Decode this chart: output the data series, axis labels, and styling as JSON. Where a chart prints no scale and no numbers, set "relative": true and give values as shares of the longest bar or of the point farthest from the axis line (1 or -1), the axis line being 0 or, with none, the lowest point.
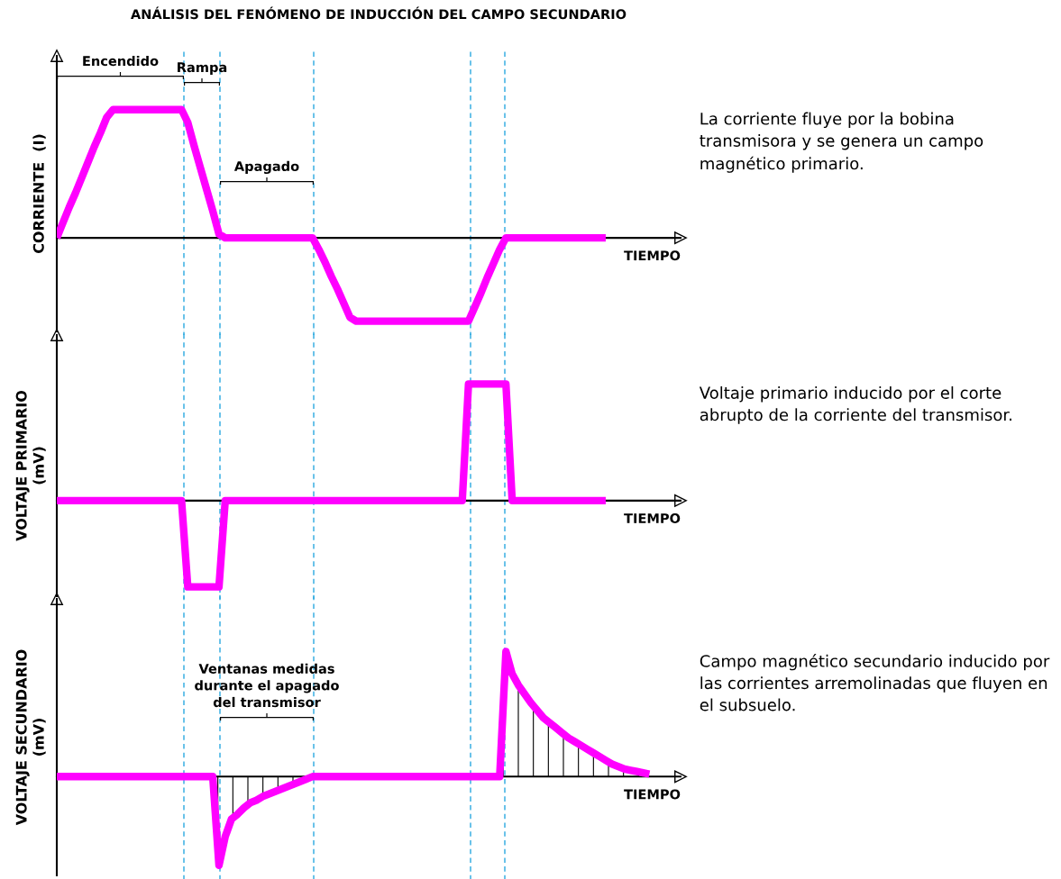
{
  "chart_data": [
    {
      "type": "line",
      "title": "ANÁLISIS DEL FENÓMENO DE INDUCCIÓN DEL CAMPO SECUNDARIO",
      "ylabel": "CORRIENTE  (I)",
      "xlabel": "TIEMPO",
      "relative": true,
      "line_style": "solid",
      "categories": [
        null,
        null,
        null,
        null,
        null,
        null,
        null,
        null,
        null,
        null,
        null,
        null,
        null,
        null,
        null,
        null,
        null,
        null,
        null,
        null,
        null,
        null,
        null,
        null,
        null,
        null,
        null,
        null,
        null,
        null,
        null,
        null,
        null,
        null,
        null,
        null,
        null,
        null,
        null,
        null,
        null,
        null,
        null,
        null,
        null,
        null,
        null,
        null,
        null,
        null,
        null,
        null,
        null,
        null,
        null,
        null,
        null,
        null,
        null,
        null,
        null,
        null,
        null,
        null,
        null,
        null,
        null,
        null,
        null,
        null,
        null,
        null,
        null,
        null,
        null,
        null,
        null,
        null,
        null,
        null,
        null,
        null,
        null,
        null,
        null,
        null,
        null,
        null,
        null
      ],
      "series": [
        {
          "color": "#ff00ff",
          "values": [
            0,
            0.12,
            0.24,
            0.35,
            0.47,
            0.59,
            0.71,
            0.82,
            0.94,
            1,
            1,
            1,
            1,
            1,
            1,
            1,
            1,
            1,
            1,
            1,
            1,
            0.9,
            0.72,
            0.55,
            0.38,
            0.21,
            0.03,
            0,
            0,
            0,
            0,
            0,
            0,
            0,
            0,
            0,
            0,
            0,
            0,
            0,
            0,
            0,
            -0.09,
            -0.19,
            -0.3,
            -0.4,
            -0.51,
            -0.62,
            -0.65,
            -0.65,
            -0.65,
            -0.65,
            -0.65,
            -0.65,
            -0.65,
            -0.65,
            -0.65,
            -0.65,
            -0.65,
            -0.65,
            -0.65,
            -0.65,
            -0.65,
            -0.65,
            -0.65,
            -0.65,
            -0.65,
            -0.54,
            -0.43,
            -0.31,
            -0.2,
            -0.09,
            0,
            0,
            0,
            0,
            0,
            0,
            0,
            0,
            0,
            0,
            0,
            0,
            0,
            0,
            0,
            0,
            0
          ]
        }
      ],
      "annotations": [
        "Encendido",
        "Rampa",
        "Apagado",
        "La corriente fluye por la bobina\ntransmisora y se genera un campo\nmagnético primario."
      ]
    },
    {
      "type": "line",
      "ylabel": "VOLTAJE PRIMARIO\n(mV)",
      "xlabel": "TIEMPO",
      "relative": true,
      "line_style": "solid",
      "categories": [
        null,
        null,
        null,
        null,
        null,
        null,
        null,
        null,
        null,
        null,
        null,
        null,
        null,
        null,
        null,
        null,
        null,
        null,
        null,
        null,
        null,
        null,
        null,
        null,
        null,
        null,
        null,
        null,
        null,
        null,
        null,
        null,
        null,
        null,
        null,
        null,
        null,
        null,
        null,
        null,
        null,
        null,
        null,
        null,
        null,
        null,
        null,
        null,
        null,
        null,
        null,
        null,
        null,
        null,
        null,
        null,
        null,
        null,
        null,
        null,
        null,
        null,
        null,
        null,
        null,
        null,
        null,
        null,
        null,
        null,
        null,
        null,
        null,
        null,
        null,
        null,
        null,
        null,
        null,
        null,
        null,
        null,
        null,
        null,
        null,
        null,
        null,
        null,
        null
      ],
      "series": [
        {
          "color": "#ff00ff",
          "values": [
            0,
            0,
            0,
            0,
            0,
            0,
            0,
            0,
            0,
            0,
            0,
            0,
            0,
            0,
            0,
            0,
            0,
            0,
            0,
            0,
            0,
            -0.74,
            -0.74,
            -0.74,
            -0.74,
            -0.74,
            -0.74,
            0,
            0,
            0,
            0,
            0,
            0,
            0,
            0,
            0,
            0,
            0,
            0,
            0,
            0,
            0,
            0,
            0,
            0,
            0,
            0,
            0,
            0,
            0,
            0,
            0,
            0,
            0,
            0,
            0,
            0,
            0,
            0,
            0,
            0,
            0,
            0,
            0,
            0,
            0,
            1,
            1,
            1,
            1,
            1,
            1,
            1,
            0,
            0,
            0,
            0,
            0,
            0,
            0,
            0,
            0,
            0,
            0,
            0,
            0,
            0,
            0,
            0
          ]
        }
      ],
      "annotations": [
        "Voltaje primario inducido por el corte\nabrupto de la corriente del transmisor."
      ]
    },
    {
      "type": "area",
      "ylabel": "VOLTAJE SECUNDARIO\n(mV)",
      "xlabel": "TIEMPO",
      "relative": true,
      "line_style": "solid",
      "categories": [
        null,
        null,
        null,
        null,
        null,
        null,
        null,
        null,
        null,
        null,
        null,
        null,
        null,
        null,
        null,
        null,
        null,
        null,
        null,
        null,
        null,
        null,
        null,
        null,
        null,
        null,
        null,
        null,
        null,
        null,
        null,
        null,
        null,
        null,
        null,
        null,
        null,
        null,
        null,
        null,
        null,
        null,
        null,
        null,
        null,
        null,
        null,
        null,
        null,
        null,
        null,
        null,
        null,
        null,
        null,
        null,
        null,
        null,
        null,
        null,
        null,
        null,
        null,
        null,
        null,
        null,
        null,
        null,
        null,
        null,
        null,
        null,
        null,
        null,
        null,
        null,
        null,
        null,
        null,
        null,
        null,
        null,
        null,
        null,
        null,
        null,
        null,
        null,
        null,
        null,
        null,
        null,
        null,
        null,
        null,
        null
      ],
      "series": [
        {
          "color": "#ff00ff",
          "values": [
            0,
            0,
            0,
            0,
            0,
            0,
            0,
            0,
            0,
            0,
            0,
            0,
            0,
            0,
            0,
            0,
            0,
            0,
            0,
            0,
            0,
            0,
            0,
            0,
            0,
            0,
            -0.71,
            -0.48,
            -0.34,
            -0.3,
            -0.25,
            -0.21,
            -0.19,
            -0.16,
            -0.14,
            -0.12,
            -0.1,
            -0.08,
            -0.06,
            -0.04,
            -0.02,
            0,
            0,
            0,
            0,
            0,
            0,
            0,
            0,
            0,
            0,
            0,
            0,
            0,
            0,
            0,
            0,
            0,
            0,
            0,
            0,
            0,
            0,
            0,
            0,
            0,
            0,
            0,
            0,
            0,
            0,
            0,
            1,
            0.82,
            0.73,
            0.66,
            0.59,
            0.53,
            0.47,
            0.43,
            0.39,
            0.35,
            0.31,
            0.28,
            0.25,
            0.22,
            0.19,
            0.16,
            0.13,
            0.1,
            0.08,
            0.06,
            0.05,
            0.04,
            0.03,
            0.02
          ]
        }
      ],
      "annotations": [
        "Ventanas medidas\ndurante el apagado\ndel transmisor",
        "Campo magnético secundario inducido por\nlas corrientes arremolinadas que fluyen en\nel subsuelo."
      ]
    }
  ]
}
